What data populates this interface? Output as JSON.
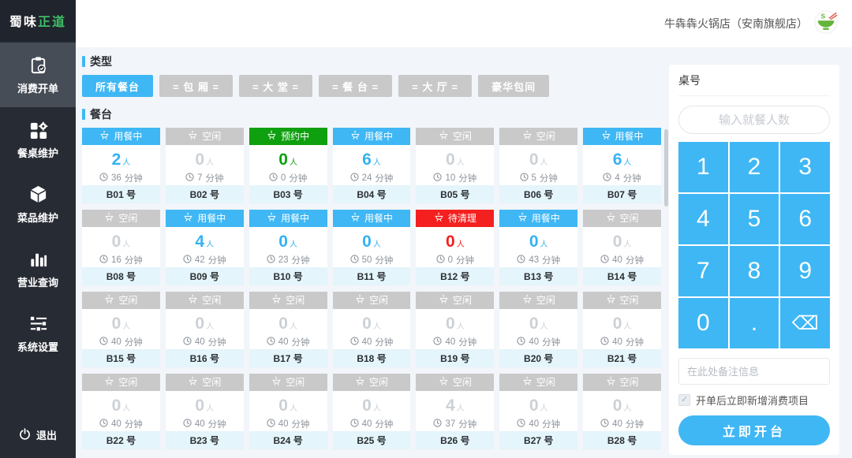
{
  "colors": {
    "accent": "#3fb7f4",
    "green": "#0fa00f",
    "red": "#f42020",
    "idle_gray": "#c9c9c9"
  },
  "logo": {
    "part1": "蜀味",
    "part2": "正道"
  },
  "sidebar": {
    "items": [
      {
        "label": "消费开单",
        "active": true
      },
      {
        "label": "餐桌维护",
        "active": false
      },
      {
        "label": "菜品维护",
        "active": false
      },
      {
        "label": "营业查询",
        "active": false
      },
      {
        "label": "系统设置",
        "active": false
      }
    ],
    "logout_label": "退出"
  },
  "topbar": {
    "store_name": "牛犇犇火锅店（安南旗舰店）"
  },
  "filters": {
    "title": "类型",
    "buttons": [
      {
        "label": "所有餐台",
        "active": true
      },
      {
        "label": "= 包 厢 =",
        "active": false
      },
      {
        "label": "= 大 堂 =",
        "active": false
      },
      {
        "label": "= 餐 台 =",
        "active": false
      },
      {
        "label": "= 大 厅 =",
        "active": false
      },
      {
        "label": "豪华包间",
        "active": false
      }
    ]
  },
  "tables": {
    "title": "餐台",
    "people_suffix": "人",
    "minutes_suffix": "分钟",
    "statuses": {
      "dining": "用餐中",
      "idle": "空闲",
      "reserved": "预约中",
      "cleaning": "待清理"
    },
    "cards": [
      {
        "label": "B01 号",
        "status": "dining",
        "people": 2,
        "minutes": 36
      },
      {
        "label": "B02 号",
        "status": "idle",
        "people": 0,
        "minutes": 7
      },
      {
        "label": "B03 号",
        "status": "reserved",
        "people": 0,
        "minutes": 0
      },
      {
        "label": "B04 号",
        "status": "dining",
        "people": 6,
        "minutes": 24
      },
      {
        "label": "B05 号",
        "status": "idle",
        "people": 0,
        "minutes": 10
      },
      {
        "label": "B06 号",
        "status": "idle",
        "people": 0,
        "minutes": 5
      },
      {
        "label": "B07 号",
        "status": "dining",
        "people": 6,
        "minutes": 4
      },
      {
        "label": "B08 号",
        "status": "idle",
        "people": 0,
        "minutes": 16
      },
      {
        "label": "B09 号",
        "status": "dining",
        "people": 4,
        "minutes": 42
      },
      {
        "label": "B10 号",
        "status": "dining",
        "people": 0,
        "minutes": 23
      },
      {
        "label": "B11 号",
        "status": "dining",
        "people": 0,
        "minutes": 50
      },
      {
        "label": "B12 号",
        "status": "cleaning",
        "people": 0,
        "minutes": 0
      },
      {
        "label": "B13 号",
        "status": "dining",
        "people": 0,
        "minutes": 43
      },
      {
        "label": "B14 号",
        "status": "idle",
        "people": 0,
        "minutes": 40
      },
      {
        "label": "B15 号",
        "status": "idle",
        "people": 0,
        "minutes": 40
      },
      {
        "label": "B16 号",
        "status": "idle",
        "people": 0,
        "minutes": 40
      },
      {
        "label": "B17 号",
        "status": "idle",
        "people": 0,
        "minutes": 40
      },
      {
        "label": "B18 号",
        "status": "idle",
        "people": 0,
        "minutes": 40
      },
      {
        "label": "B19 号",
        "status": "idle",
        "people": 0,
        "minutes": 40
      },
      {
        "label": "B20 号",
        "status": "idle",
        "people": 0,
        "minutes": 40
      },
      {
        "label": "B21 号",
        "status": "idle",
        "people": 0,
        "minutes": 40
      },
      {
        "label": "B22 号",
        "status": "idle",
        "people": 0,
        "minutes": 40
      },
      {
        "label": "B23 号",
        "status": "idle",
        "people": 0,
        "minutes": 40
      },
      {
        "label": "B24 号",
        "status": "idle",
        "people": 0,
        "minutes": 40
      },
      {
        "label": "B25 号",
        "status": "idle",
        "people": 0,
        "minutes": 40
      },
      {
        "label": "B26 号",
        "status": "idle",
        "people": 4,
        "minutes": 37
      },
      {
        "label": "B27 号",
        "status": "idle",
        "people": 0,
        "minutes": 40
      },
      {
        "label": "B28 号",
        "status": "idle",
        "people": 0,
        "minutes": 40
      }
    ]
  },
  "panel": {
    "title": "桌号",
    "people_placeholder": "输入就餐人数",
    "keys": [
      "1",
      "2",
      "3",
      "4",
      "5",
      "6",
      "7",
      "8",
      "9",
      "0",
      ".",
      "⌫"
    ],
    "remark_placeholder": "在此处备注信息",
    "checkbox_label": "开单后立即新增消费项目",
    "checkbox_checked": true,
    "submit_label": "立即开台"
  }
}
